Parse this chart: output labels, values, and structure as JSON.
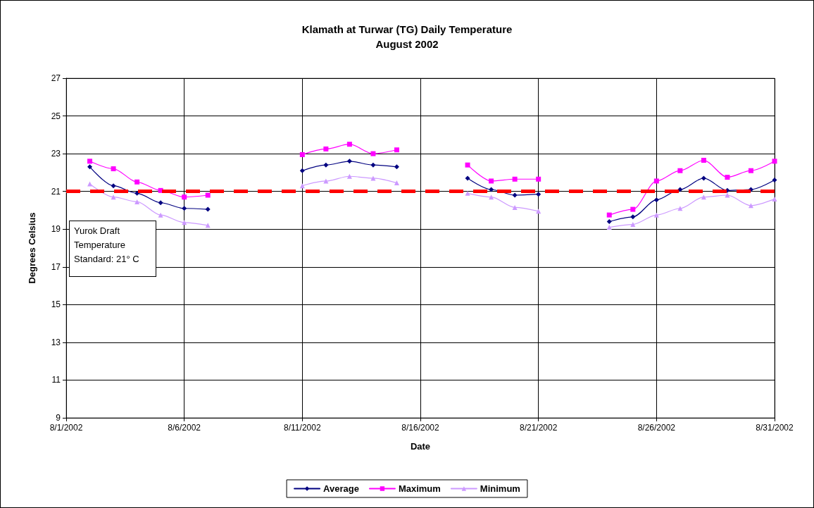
{
  "chart_data": {
    "type": "line",
    "title": "Klamath at Turwar (TG) Daily Temperature",
    "subtitle": "August 2002",
    "xlabel": "Date",
    "ylabel": "Degrees Celsius",
    "x": [
      "2002-08-02",
      "2002-08-03",
      "2002-08-04",
      "2002-08-05",
      "2002-08-06",
      "2002-08-07",
      "2002-08-08",
      "2002-08-09",
      "2002-08-10",
      "2002-08-11",
      "2002-08-12",
      "2002-08-13",
      "2002-08-14",
      "2002-08-15",
      "2002-08-16",
      "2002-08-17",
      "2002-08-18",
      "2002-08-19",
      "2002-08-20",
      "2002-08-21",
      "2002-08-22",
      "2002-08-23",
      "2002-08-24",
      "2002-08-25",
      "2002-08-26",
      "2002-08-27",
      "2002-08-28",
      "2002-08-29",
      "2002-08-30",
      "2002-08-31"
    ],
    "series": [
      {
        "name": "Average",
        "color": "#000080",
        "marker": "diamond",
        "values": [
          22.3,
          21.3,
          20.9,
          20.4,
          20.1,
          20.05,
          null,
          null,
          null,
          22.1,
          22.4,
          22.6,
          22.4,
          22.3,
          null,
          null,
          21.7,
          21.1,
          20.8,
          20.85,
          null,
          null,
          19.4,
          19.65,
          20.55,
          21.1,
          21.7,
          21.05,
          21.1,
          21.6
        ]
      },
      {
        "name": "Maximum",
        "color": "#ff00ff",
        "marker": "square",
        "values": [
          22.6,
          22.2,
          21.5,
          21.05,
          20.7,
          20.8,
          null,
          null,
          null,
          22.95,
          23.25,
          23.5,
          23.0,
          23.2,
          null,
          null,
          22.4,
          21.55,
          21.65,
          21.65,
          null,
          null,
          19.75,
          20.05,
          21.55,
          22.1,
          22.65,
          21.75,
          22.1,
          22.6
        ]
      },
      {
        "name": "Minimum",
        "color": "#cc99ff",
        "marker": "triangle",
        "values": [
          21.4,
          20.7,
          20.45,
          19.75,
          19.35,
          19.2,
          null,
          null,
          null,
          21.3,
          21.55,
          21.8,
          21.7,
          21.45,
          null,
          null,
          20.9,
          20.7,
          20.15,
          19.95,
          null,
          null,
          19.1,
          19.25,
          19.75,
          20.1,
          20.7,
          20.8,
          20.25,
          20.6
        ]
      }
    ],
    "xlim": [
      "2002-08-01",
      "2002-08-31"
    ],
    "xticks": [
      {
        "value": "2002-08-01",
        "label": "8/1/2002"
      },
      {
        "value": "2002-08-06",
        "label": "8/6/2002"
      },
      {
        "value": "2002-08-11",
        "label": "8/11/2002"
      },
      {
        "value": "2002-08-16",
        "label": "8/16/2002"
      },
      {
        "value": "2002-08-21",
        "label": "8/21/2002"
      },
      {
        "value": "2002-08-26",
        "label": "8/26/2002"
      },
      {
        "value": "2002-08-31",
        "label": "8/31/2002"
      }
    ],
    "ylim": [
      9,
      27
    ],
    "yticks": [
      9,
      11,
      13,
      15,
      17,
      19,
      21,
      23,
      25,
      27
    ],
    "ref_lines": [
      {
        "axis": "y",
        "value": 21,
        "color": "#ff0000",
        "line_style": "dashed"
      }
    ],
    "annotations": [
      "Yurok Draft\nTemperature\nStandard: 21° C"
    ],
    "grid": true,
    "legend": "bottom",
    "line_style": "solid"
  }
}
